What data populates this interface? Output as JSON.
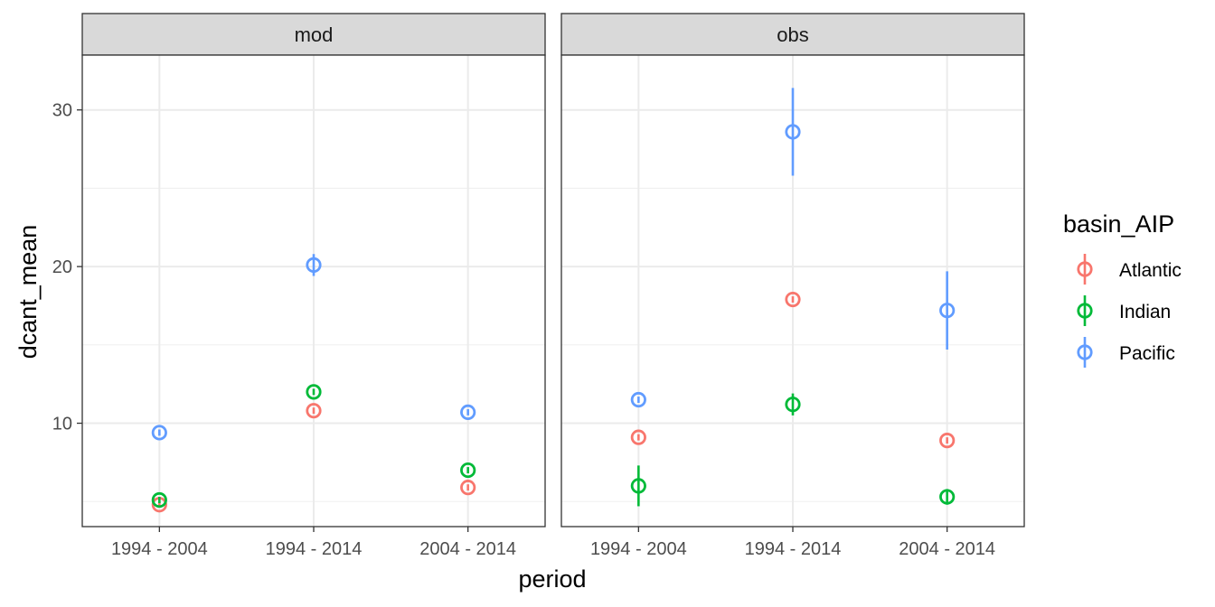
{
  "chart_data": {
    "type": "scatter",
    "facet_by": "model",
    "panels": [
      "mod",
      "obs"
    ],
    "categories": [
      "1994 - 2004",
      "1994 - 2014",
      "2004 - 2014"
    ],
    "xlabel": "period",
    "ylabel": "dcant_mean",
    "ylim": [
      3.4,
      33.5
    ],
    "yticks": [
      10,
      20,
      30
    ],
    "grid": true,
    "legend": {
      "title": "basin_AIP",
      "position": "right",
      "entries": [
        "Atlantic",
        "Indian",
        "Pacific"
      ]
    },
    "colors": {
      "Atlantic": "#F8766D",
      "Indian": "#00BA38",
      "Pacific": "#619CFF"
    },
    "series": [
      {
        "name": "Atlantic",
        "mod": {
          "mean": [
            4.8,
            10.8,
            5.9
          ],
          "sd": [
            0.2,
            0.2,
            0.2
          ]
        },
        "obs": {
          "mean": [
            9.1,
            17.9,
            8.9
          ],
          "sd": [
            0.2,
            0.2,
            0.2
          ]
        }
      },
      {
        "name": "Indian",
        "mod": {
          "mean": [
            5.1,
            12.0,
            7.0
          ],
          "sd": [
            0.2,
            0.2,
            0.2
          ]
        },
        "obs": {
          "mean": [
            6.0,
            11.2,
            5.3
          ],
          "sd": [
            1.3,
            0.7,
            0.5
          ]
        }
      },
      {
        "name": "Pacific",
        "mod": {
          "mean": [
            9.4,
            20.1,
            10.7
          ],
          "sd": [
            0.2,
            0.7,
            0.2
          ]
        },
        "obs": {
          "mean": [
            11.5,
            28.6,
            17.2
          ],
          "sd": [
            0.2,
            2.8,
            2.5
          ]
        }
      }
    ]
  }
}
